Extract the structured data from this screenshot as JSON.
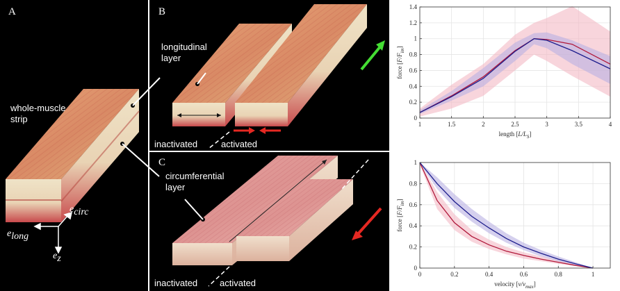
{
  "panels": {
    "a_label": "A",
    "b_label": "B",
    "c_label": "C",
    "whole_muscle_label": "whole-muscle\nstrip",
    "longitudinal_label": "longitudinal\nlayer",
    "circumferential_label": "circumferential\nlayer",
    "inactivated_b": "inactivated",
    "activated_b": "activated",
    "inactivated_c": "inactivated",
    "activated_c": "activated",
    "axis_long": "long",
    "axis_circ": "circ",
    "axis_z": "z",
    "axis_e": "e"
  },
  "colors": {
    "background_left": "#000000",
    "series_red": "#b0183a",
    "series_blue": "#1d1d8c",
    "band_red": "#f4b9c4",
    "band_blue": "#b9b0e2",
    "arrow_green": "#44dd33",
    "arrow_red": "#e52822"
  },
  "chart_data": [
    {
      "type": "line",
      "xlabel_main": "length [",
      "xlabel_var": "L/L",
      "xlabel_sub": "S",
      "xlabel_end": "]",
      "ylabel_main": "force [",
      "ylabel_var": "F/F",
      "ylabel_sub": "im",
      "ylabel_end": "]",
      "xlim": [
        1,
        4
      ],
      "ylim": [
        0,
        1.4
      ],
      "xticks": [
        "1",
        "1.5",
        "2",
        "2.5",
        "3",
        "3.5",
        "4"
      ],
      "yticks": [
        "0",
        "0.2",
        "0.4",
        "0.6",
        "0.8",
        "1",
        "1.2",
        "1.4"
      ],
      "grid": true,
      "series": [
        {
          "color": "red",
          "x": [
            1,
            1.5,
            2,
            2.5,
            2.8,
            3,
            3.4,
            4
          ],
          "y": [
            0.07,
            0.28,
            0.52,
            0.85,
            1.0,
            0.99,
            0.93,
            0.68
          ],
          "band_lo": [
            0.02,
            0.12,
            0.28,
            0.6,
            0.8,
            0.72,
            0.53,
            0.27
          ],
          "band_hi": [
            0.12,
            0.42,
            0.68,
            1.05,
            1.2,
            1.26,
            1.41,
            1.09
          ]
        },
        {
          "color": "blue",
          "x": [
            1,
            1.5,
            2,
            2.5,
            2.8,
            3,
            3.4,
            4
          ],
          "y": [
            0.07,
            0.27,
            0.5,
            0.84,
            1.0,
            0.98,
            0.85,
            0.62
          ],
          "band_lo": [
            0.05,
            0.22,
            0.4,
            0.72,
            0.93,
            0.88,
            0.68,
            0.43
          ],
          "band_hi": [
            0.1,
            0.34,
            0.63,
            0.95,
            1.07,
            1.08,
            0.98,
            0.78
          ]
        }
      ]
    },
    {
      "type": "line",
      "xlabel_main": "velocity [",
      "xlabel_var": "v/v",
      "xlabel_sub": "max",
      "xlabel_end": "]",
      "ylabel_main": "force [",
      "ylabel_var": "F/F",
      "ylabel_sub": "im",
      "ylabel_end": "]",
      "xlim": [
        0,
        1.1
      ],
      "ylim": [
        0,
        1
      ],
      "xticks": [
        "0",
        "0.2",
        "0.4",
        "0.6",
        "0.8",
        "1"
      ],
      "yticks": [
        "0",
        "0.2",
        "0.4",
        "0.6",
        "0.8",
        "1"
      ],
      "grid": true,
      "series": [
        {
          "color": "red",
          "x": [
            0,
            0.1,
            0.2,
            0.3,
            0.4,
            0.5,
            0.6,
            0.7,
            0.8,
            0.9,
            1.0
          ],
          "y": [
            1.0,
            0.64,
            0.43,
            0.3,
            0.22,
            0.16,
            0.12,
            0.085,
            0.055,
            0.025,
            0.0
          ],
          "band_lo": [
            0.98,
            0.56,
            0.36,
            0.25,
            0.18,
            0.13,
            0.09,
            0.065,
            0.04,
            0.02,
            0.0
          ],
          "band_hi": [
            1.0,
            0.72,
            0.51,
            0.36,
            0.27,
            0.2,
            0.15,
            0.11,
            0.075,
            0.035,
            0.0
          ]
        },
        {
          "color": "blue",
          "x": [
            0,
            0.1,
            0.2,
            0.3,
            0.4,
            0.5,
            0.6,
            0.7,
            0.8,
            0.9,
            1.0
          ],
          "y": [
            1.0,
            0.8,
            0.63,
            0.49,
            0.38,
            0.28,
            0.2,
            0.14,
            0.085,
            0.04,
            0.0
          ],
          "band_lo": [
            0.99,
            0.75,
            0.57,
            0.44,
            0.33,
            0.24,
            0.17,
            0.11,
            0.065,
            0.03,
            0.0
          ],
          "band_hi": [
            1.0,
            0.86,
            0.7,
            0.56,
            0.44,
            0.33,
            0.24,
            0.17,
            0.11,
            0.055,
            0.0
          ]
        }
      ]
    }
  ]
}
